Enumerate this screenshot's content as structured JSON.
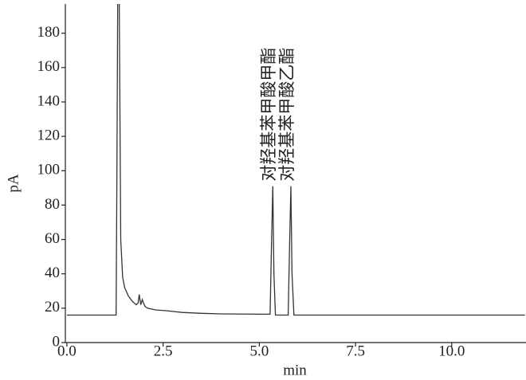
{
  "chart_data": {
    "type": "line",
    "x_label": "min",
    "y_label": "pA",
    "xlim": [
      -0.04,
      11.93
    ],
    "ylim": [
      0,
      197
    ],
    "xticks": [
      {
        "value": 0,
        "label": "0.0"
      },
      2.5,
      {
        "value": 5,
        "label": "5.0"
      },
      7.5,
      {
        "value": 10,
        "label": "10.0"
      }
    ],
    "yticks": [
      0,
      20,
      40,
      60,
      80,
      100,
      120,
      140,
      160,
      180
    ],
    "series": [
      {
        "color": "#333333",
        "x": [
          0,
          1.28,
          1.3,
          1.32,
          1.36,
          1.4,
          1.45,
          1.5,
          1.6,
          1.7,
          1.8,
          1.85,
          1.88,
          1.92,
          1.96,
          1.99,
          2.03,
          2.1,
          2.3,
          2.6,
          3.0,
          3.5,
          4.0,
          5.0,
          5.28,
          5.32,
          5.35,
          5.38,
          5.42,
          5.5,
          5.75,
          5.79,
          5.82,
          5.85,
          5.9,
          6.0,
          7.0,
          9.0,
          11.9
        ],
        "values": [
          16,
          16,
          100,
          200,
          200,
          60,
          38,
          32,
          27,
          24,
          22,
          23,
          28,
          22,
          25,
          23,
          21,
          20,
          19,
          18.5,
          17.5,
          17,
          16.7,
          16.5,
          16.5,
          60,
          91,
          40,
          16,
          16,
          16,
          60,
          91,
          40,
          16,
          16,
          16,
          16,
          16
        ]
      }
    ],
    "annotations": [
      {
        "text": "对羟基苯甲酸甲酯",
        "x": 5.35,
        "y": 91
      },
      {
        "text": "对羟基苯甲酸乙酯",
        "x": 5.82,
        "y": 91
      }
    ]
  }
}
